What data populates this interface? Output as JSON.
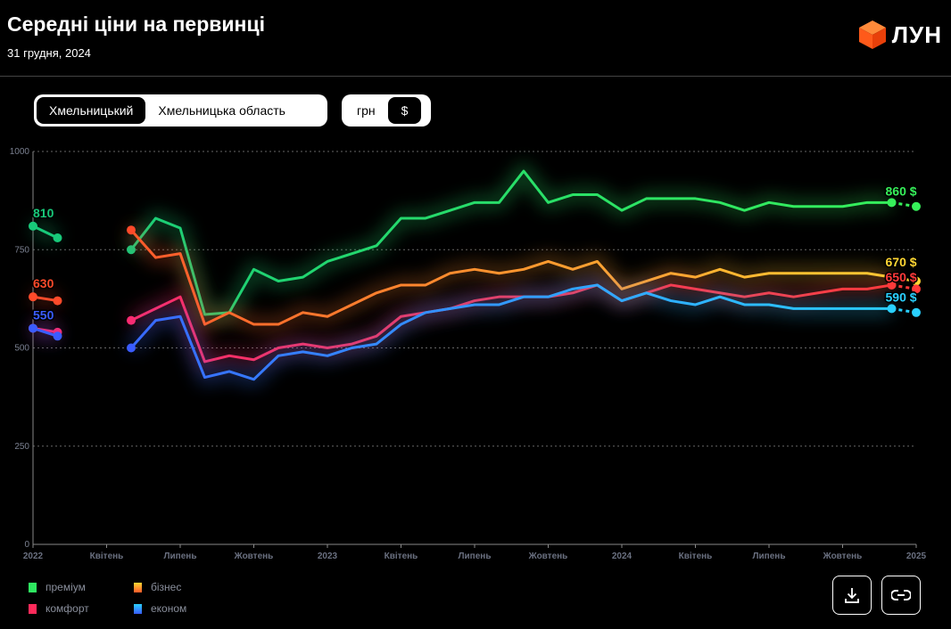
{
  "header": {
    "title": "Середні ціни на первинці",
    "date": "31 грудня, 2024",
    "logo_text": "ЛУН"
  },
  "region_toggle": {
    "options": [
      "Хмельницький",
      "Хмельницька область"
    ],
    "selected": "Хмельницький"
  },
  "currency_toggle": {
    "options": [
      "грн",
      "$"
    ],
    "selected": "$"
  },
  "actions": {
    "download": "download-icon",
    "link": "link-icon"
  },
  "chart_data": {
    "type": "line",
    "x_start": "2022-01",
    "x_end": "2025-01",
    "x_step": "month",
    "x_ticks": [
      "2022",
      "Квітень",
      "Липень",
      "Жовтень",
      "2023",
      "Квітень",
      "Липень",
      "Жовтень",
      "2024",
      "Квітень",
      "Липень",
      "Жовтень",
      "2025"
    ],
    "y_ticks": [
      0,
      250,
      500,
      750,
      1000
    ],
    "ylim": [
      0,
      1000
    ],
    "grid": "horizontal dotted",
    "legend_position": "bottom-left",
    "series": [
      {
        "name": "преміум",
        "colors": [
          "#18c97a",
          "#36f05a"
        ],
        "start_label": "810",
        "end_label": "860 $",
        "values": [
          810,
          780,
          null,
          null,
          750,
          830,
          805,
          585,
          590,
          700,
          670,
          680,
          720,
          740,
          760,
          830,
          830,
          850,
          870,
          870,
          950,
          870,
          890,
          890,
          850,
          880,
          880,
          880,
          870,
          850,
          870,
          860,
          860,
          860,
          870,
          870,
          860
        ]
      },
      {
        "name": "бізнес",
        "colors": [
          "#ff4a2a",
          "#ffd633"
        ],
        "start_label": "630",
        "end_label": "670 $",
        "values": [
          630,
          620,
          null,
          null,
          800,
          730,
          740,
          560,
          590,
          560,
          560,
          590,
          580,
          610,
          640,
          660,
          660,
          690,
          700,
          690,
          700,
          720,
          700,
          720,
          650,
          670,
          690,
          680,
          700,
          680,
          690,
          690,
          690,
          690,
          690,
          680,
          670
        ]
      },
      {
        "name": "комфорт",
        "colors": [
          "#ff2a6e",
          "#ff3a3a"
        ],
        "start_label": "",
        "end_label": "650 $",
        "values": [
          550,
          540,
          null,
          null,
          570,
          600,
          630,
          465,
          480,
          470,
          500,
          510,
          500,
          510,
          530,
          580,
          590,
          600,
          620,
          630,
          630,
          630,
          640,
          660,
          620,
          640,
          660,
          650,
          640,
          630,
          640,
          630,
          640,
          650,
          650,
          660,
          650
        ]
      },
      {
        "name": "економ",
        "colors": [
          "#3a5cff",
          "#2ad0ff"
        ],
        "start_label": "550",
        "end_label": "590 $",
        "values": [
          550,
          530,
          null,
          null,
          500,
          570,
          580,
          425,
          440,
          420,
          480,
          490,
          480,
          500,
          510,
          560,
          590,
          600,
          610,
          610,
          630,
          630,
          650,
          660,
          620,
          640,
          620,
          610,
          630,
          610,
          610,
          600,
          600,
          600,
          600,
          600,
          590
        ]
      }
    ]
  }
}
